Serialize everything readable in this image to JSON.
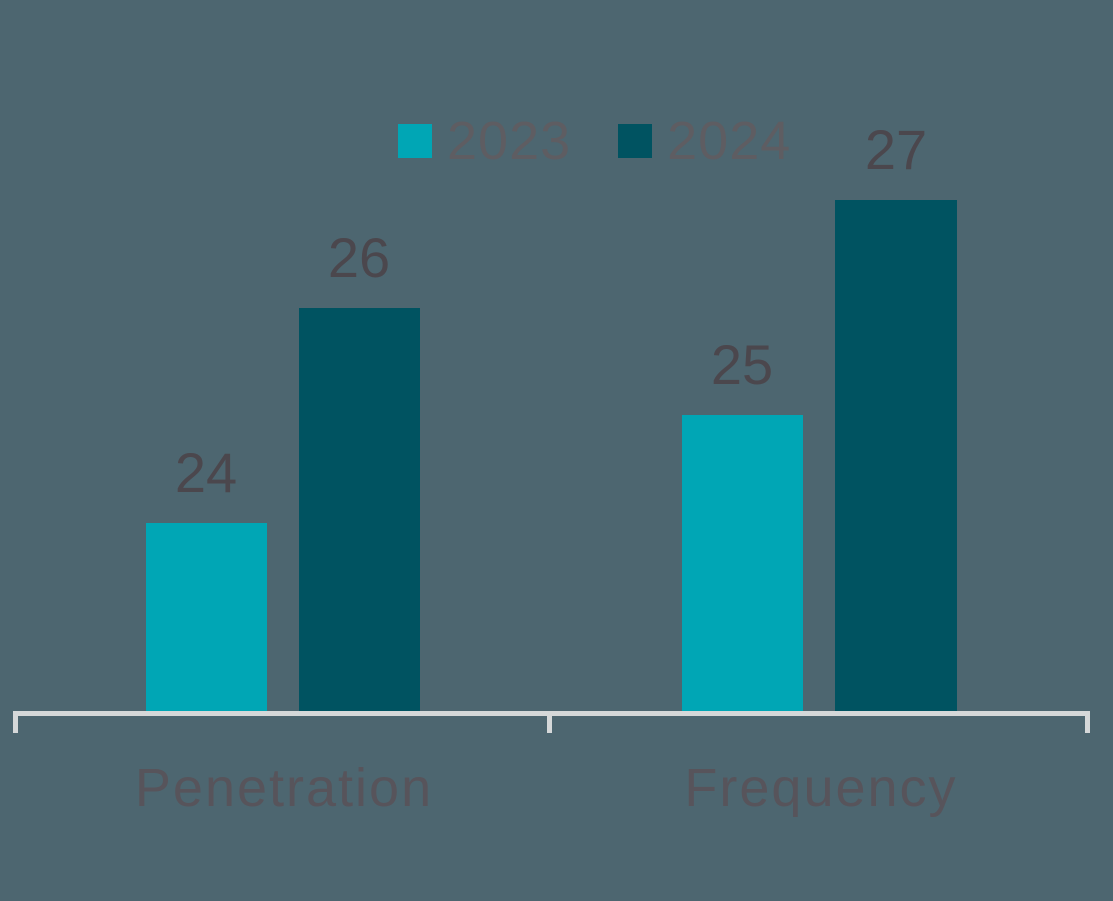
{
  "chart_data": {
    "type": "bar",
    "title": "",
    "categories": [
      "Penetration",
      "Frequency"
    ],
    "series": [
      {
        "name": "2023",
        "color": "#00A6B5",
        "values": [
          24,
          25
        ]
      },
      {
        "name": "2024",
        "color": "#005361",
        "values": [
          26,
          27
        ]
      }
    ],
    "ylim": [
      22.25,
      28.87
    ],
    "grid": false,
    "legend_position": "top",
    "data_labels": true
  },
  "colors": {
    "background": "#4D6670",
    "axis_line": "#D5D8D9",
    "value_label_text": "#4B474D",
    "category_label_text": "#57545B",
    "legend_text": "#5E5D62"
  }
}
